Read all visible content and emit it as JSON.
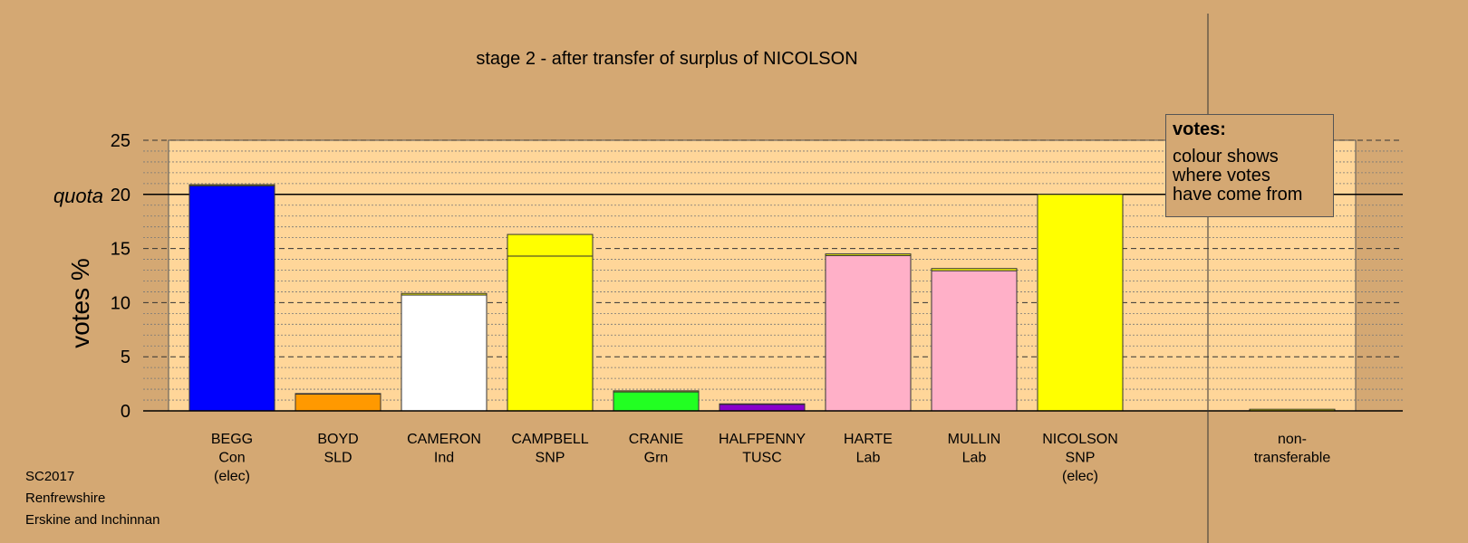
{
  "title": "stage 2 - after transfer of surplus of NICOLSON",
  "footer": [
    "SC2017",
    "Renfrewshire",
    "Erskine and Inchinnan"
  ],
  "legend": {
    "title": "votes:",
    "lines": [
      "colour shows",
      "where votes",
      "have come from"
    ]
  },
  "quota_label": "quota",
  "chart_data": {
    "type": "bar",
    "title": "stage 2 - after transfer of surplus of NICOLSON",
    "ylabel": "votes %",
    "xlabel": "",
    "ylim": [
      0,
      25
    ],
    "yticks": [
      0,
      5,
      10,
      15,
      20,
      25
    ],
    "quota": 20,
    "grid": true,
    "legend_position": "top-right",
    "bars": [
      {
        "label": [
          "BEGG",
          "Con",
          "(elec)"
        ],
        "segments": [
          {
            "value": 20.8,
            "color": "#0000FF"
          },
          {
            "value": 0.1,
            "color": "#FFFF00"
          }
        ]
      },
      {
        "label": [
          "BOYD",
          "SLD"
        ],
        "segments": [
          {
            "value": 1.55,
            "color": "#FF9900"
          },
          {
            "value": 0.05,
            "color": "#FFFF00"
          }
        ]
      },
      {
        "label": [
          "CAMERON",
          "Ind"
        ],
        "segments": [
          {
            "value": 10.7,
            "color": "#FFFFFF"
          },
          {
            "value": 0.15,
            "color": "#FFFF00"
          }
        ]
      },
      {
        "label": [
          "CAMPBELL",
          "SNP"
        ],
        "segments": [
          {
            "value": 14.3,
            "color": "#FFFF00"
          },
          {
            "value": 2.0,
            "color": "#FFFF00"
          }
        ]
      },
      {
        "label": [
          "CRANIE",
          "Grn"
        ],
        "segments": [
          {
            "value": 1.75,
            "color": "#22FF22"
          },
          {
            "value": 0.1,
            "color": "#FFFF00"
          }
        ]
      },
      {
        "label": [
          "HALFPENNY",
          "TUSC"
        ],
        "segments": [
          {
            "value": 0.6,
            "color": "#8800CC"
          },
          {
            "value": 0.05,
            "color": "#FFFF00"
          }
        ]
      },
      {
        "label": [
          "HARTE",
          "Lab"
        ],
        "segments": [
          {
            "value": 14.35,
            "color": "#FFB0C8"
          },
          {
            "value": 0.15,
            "color": "#FFFF00"
          }
        ]
      },
      {
        "label": [
          "MULLIN",
          "Lab"
        ],
        "segments": [
          {
            "value": 12.95,
            "color": "#FFB0C8"
          },
          {
            "value": 0.2,
            "color": "#FFFF00"
          }
        ]
      },
      {
        "label": [
          "NICOLSON",
          "SNP",
          "(elec)"
        ],
        "segments": [
          {
            "value": 20.0,
            "color": "#FFFF00"
          }
        ]
      },
      {
        "label": [
          "non-",
          "transferable"
        ],
        "segments": [
          {
            "value": 0.15,
            "color": "#FFFF00"
          }
        ]
      }
    ]
  },
  "colors": {
    "background": "#D4A873",
    "plot_area": "#FFD699"
  }
}
